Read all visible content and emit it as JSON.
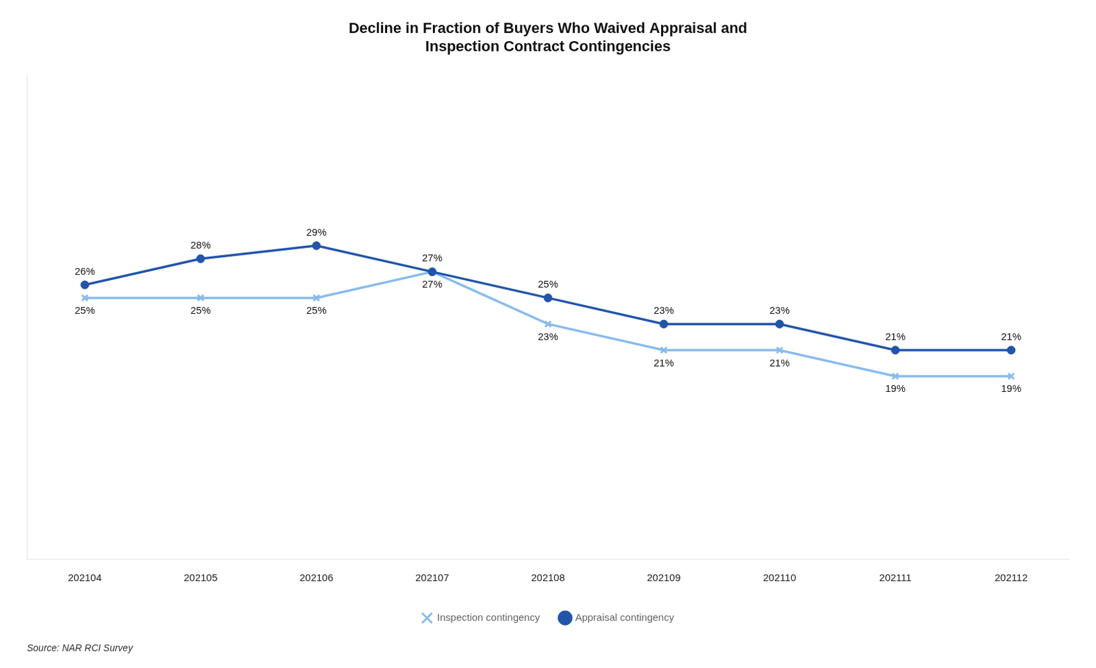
{
  "chart_data": {
    "type": "line",
    "title": "Decline in Fraction of Buyers Who Waived Appraisal and\nInspection Contract Contingencies",
    "categories": [
      "202104",
      "202105",
      "202106",
      "202107",
      "202108",
      "202109",
      "202110",
      "202111",
      "202112"
    ],
    "series": [
      {
        "name": "Appraisal contingency",
        "color": "#2255aa",
        "marker": "circle",
        "values": [
          26,
          28,
          29,
          27,
          25,
          23,
          23,
          21,
          21
        ],
        "value_labels": [
          "26%",
          "28%",
          "29%",
          "27%",
          "25%",
          "23%",
          "23%",
          "21%",
          "21%"
        ]
      },
      {
        "name": "Inspection contingency",
        "color": "#88bbee",
        "marker": "x",
        "values": [
          25,
          25,
          25,
          27,
          23,
          21,
          21,
          19,
          19
        ],
        "value_labels": [
          "25%",
          "25%",
          "25%",
          "27%",
          "23%",
          "21%",
          "21%",
          "19%",
          "19%"
        ]
      }
    ],
    "ylim": [
      5,
      42
    ],
    "grid": false,
    "legend": "bottom",
    "data_labels": true,
    "tick_labels": "x",
    "source": "Source: NAR RCI Survey"
  }
}
